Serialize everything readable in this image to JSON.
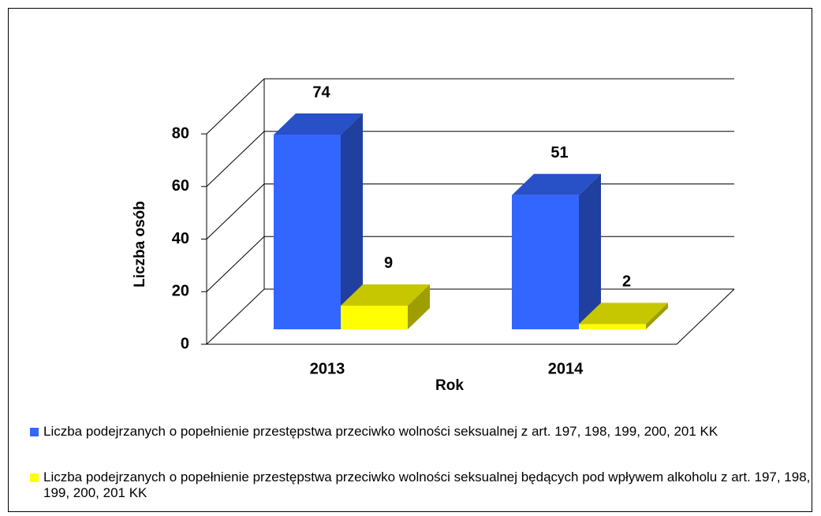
{
  "chart_data": {
    "type": "bar3d",
    "categories": [
      "2013",
      "2014"
    ],
    "series": [
      {
        "name": "Liczba podejrzanych o popełnienie przestępstwa przeciwko wolności seksualnej z art. 197, 198, 199, 200, 201 KK",
        "color": "#3366ff",
        "values": [
          74,
          51
        ]
      },
      {
        "name": "Liczba podejrzanych o popełnienie przestępstwa przeciwko wolności seksualnej będących pod wpływem alkoholu z art. 197, 198, 199, 200, 201 KK",
        "color": "#ffff00",
        "values": [
          9,
          2
        ]
      }
    ],
    "xlabel": "Rok",
    "ylabel": "Liczba osób",
    "ylim": [
      0,
      80
    ],
    "yticks": [
      0,
      20,
      40,
      60,
      80
    ],
    "grid": true,
    "legend": "bottom"
  }
}
